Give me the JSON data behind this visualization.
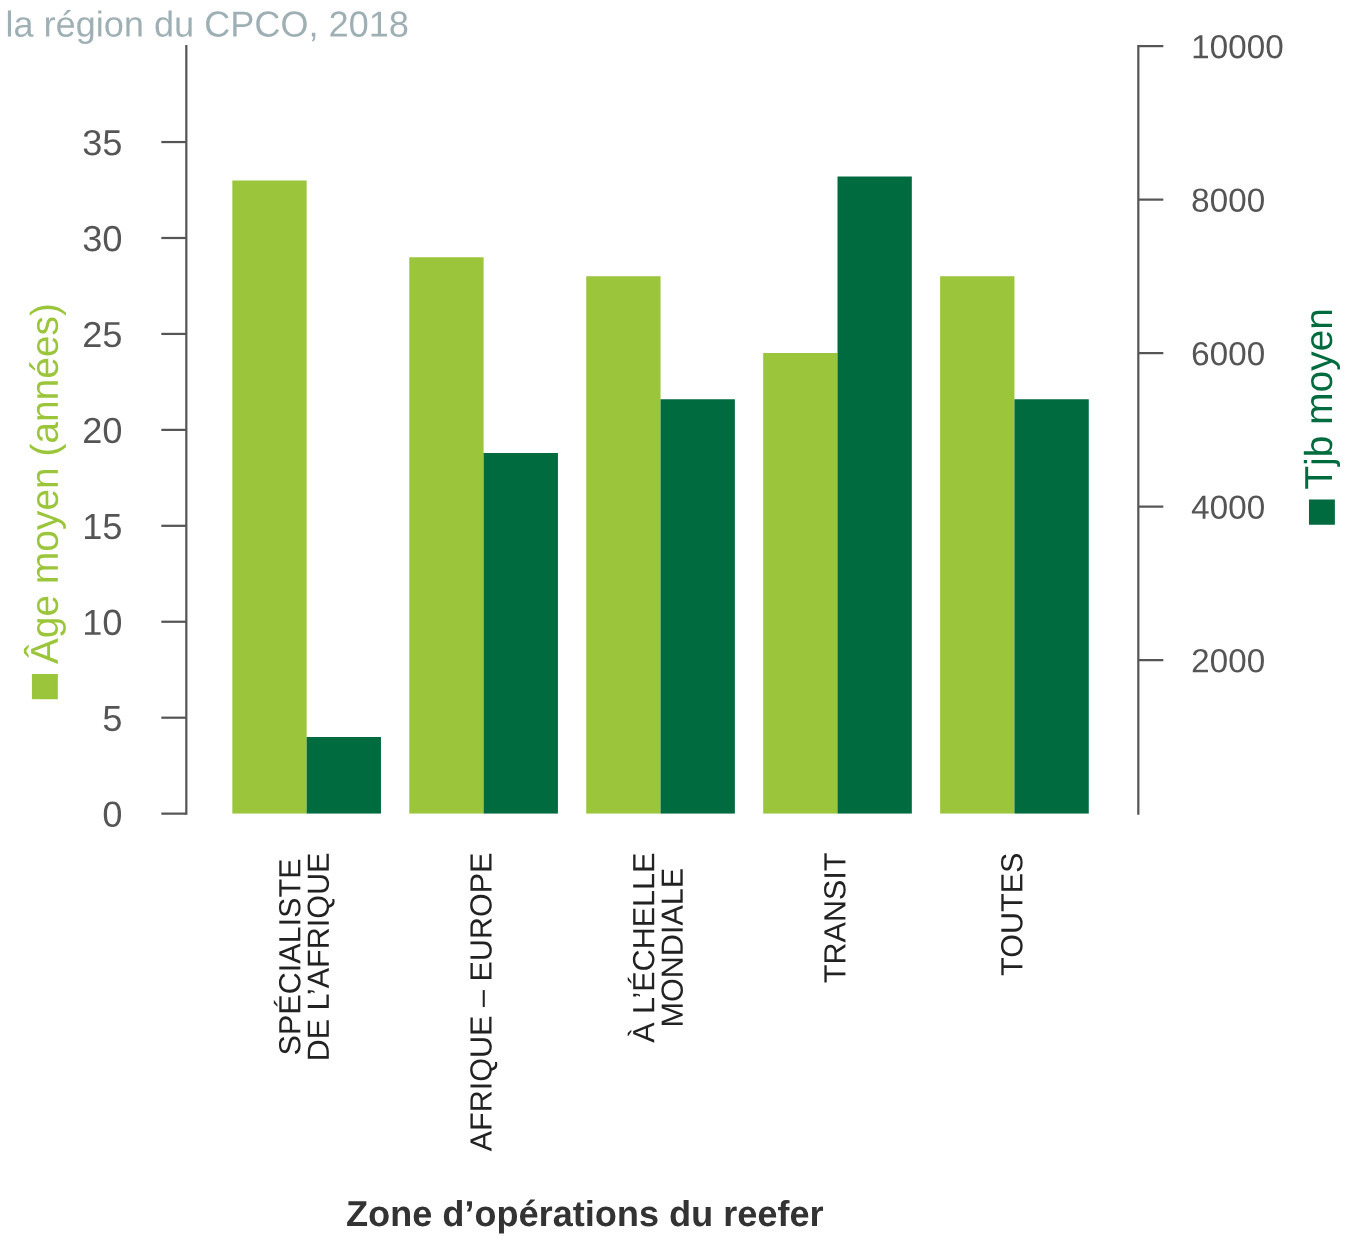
{
  "chart_data": {
    "type": "bar",
    "title": "la région du CPCO, 2018",
    "xlabel": "Zone d’opérations du reefer",
    "categories": [
      "SPÉCIALISTE\nDE L’AFRIQUE",
      "AFRIQUE – EUROPE",
      "À L’ÉCHELLE\nMONDIALE",
      "TRANSIT",
      "TOUTES"
    ],
    "series": [
      {
        "name": "Âge moyen (années)",
        "color": "#9bc53a",
        "values": [
          33,
          29,
          28,
          24,
          28
        ]
      },
      {
        "name": "Tjb moyen",
        "color": "#006b3f",
        "axis": "y2",
        "values": [
          1000,
          4700,
          5400,
          8300,
          5400
        ]
      }
    ],
    "ylim": [
      0,
      40
    ],
    "yticks": [
      0,
      5,
      10,
      15,
      20,
      25,
      30,
      35
    ],
    "y2lim": [
      0,
      10000
    ],
    "y2ticks": [
      2000,
      4000,
      6000,
      8000,
      10000
    ],
    "grid": false,
    "legend": false
  }
}
